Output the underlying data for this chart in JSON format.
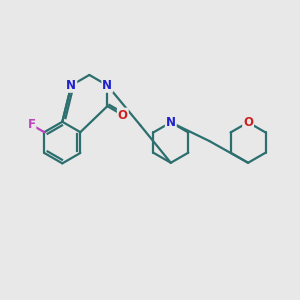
{
  "background_color": "#e8e8e8",
  "bond_color": "#2d6e6e",
  "N_color": "#2020cc",
  "O_color": "#cc2020",
  "F_color": "#bb44bb",
  "lw": 1.6,
  "fs": 8.5,
  "figsize": [
    3.0,
    3.0
  ],
  "dpi": 100,
  "xlim": [
    0,
    10
  ],
  "ylim": [
    0,
    10
  ]
}
